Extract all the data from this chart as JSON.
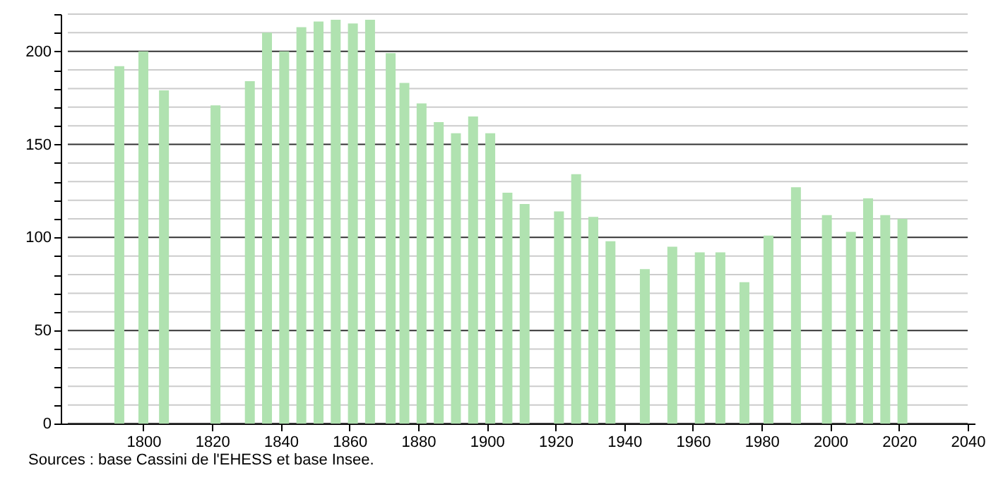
{
  "chart_data": {
    "type": "bar",
    "x": [
      1793,
      1800,
      1806,
      1821,
      1831,
      1836,
      1841,
      1846,
      1851,
      1856,
      1861,
      1866,
      1872,
      1876,
      1881,
      1886,
      1891,
      1896,
      1901,
      1906,
      1911,
      1921,
      1926,
      1931,
      1936,
      1946,
      1954,
      1962,
      1968,
      1975,
      1982,
      1990,
      1999,
      2006,
      2011,
      2016,
      2021
    ],
    "values": [
      192,
      200,
      179,
      171,
      184,
      210,
      200,
      213,
      216,
      217,
      215,
      217,
      199,
      183,
      172,
      162,
      156,
      165,
      156,
      124,
      118,
      114,
      134,
      111,
      98,
      83,
      95,
      92,
      92,
      76,
      101,
      127,
      112,
      103,
      121,
      112,
      110
    ],
    "color": "#b0e2b0",
    "xlim": [
      1778,
      2040
    ],
    "xticks": [
      1800,
      1820,
      1840,
      1860,
      1880,
      1900,
      1920,
      1940,
      1960,
      1980,
      2000,
      2020,
      2040
    ],
    "ylim": [
      0,
      220
    ],
    "yticks": [
      0,
      {
        "value": 10,
        "label": null
      },
      {
        "value": 20,
        "label": null
      },
      {
        "value": 30,
        "label": null
      },
      {
        "value": 40,
        "label": null
      },
      50,
      {
        "value": 60,
        "label": null
      },
      {
        "value": 70,
        "label": null
      },
      {
        "value": 80,
        "label": null
      },
      {
        "value": 90,
        "label": null
      },
      100,
      {
        "value": 110,
        "label": null
      },
      {
        "value": 120,
        "label": null
      },
      {
        "value": 130,
        "label": null
      },
      {
        "value": 140,
        "label": null
      },
      150,
      {
        "value": 160,
        "label": null
      },
      {
        "value": 170,
        "label": null
      },
      {
        "value": 180,
        "label": null
      },
      {
        "value": 190,
        "label": null
      },
      200,
      {
        "value": 210,
        "label": null
      },
      {
        "value": 220,
        "label": null
      }
    ],
    "grid": "y",
    "annotations": [
      "Sources : base Cassini de l'EHESS et base Insee."
    ]
  }
}
